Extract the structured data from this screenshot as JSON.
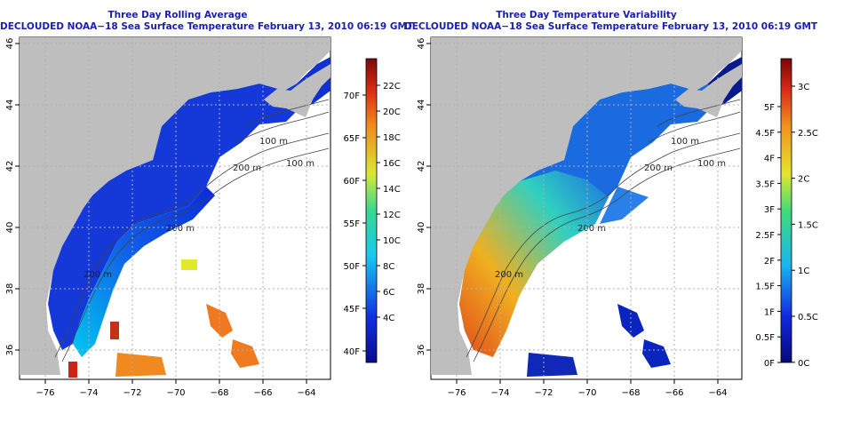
{
  "panels": [
    {
      "title_line1": "Three Day Rolling Average",
      "title_line2": "DECLOUDED NOAA−18 Sea Surface Temperature February 13, 2010 06:19 GMT",
      "colorbar": {
        "celsius_ticks": [
          "22C",
          "20C",
          "18C",
          "16C",
          "14C",
          "12C",
          "10C",
          "8C",
          "6C",
          "4C"
        ],
        "fahrenheit_ticks": [
          "70F",
          "65F",
          "60F",
          "55F",
          "50F",
          "45F",
          "40F"
        ]
      }
    },
    {
      "title_line1": "Three Day Temperature Variability",
      "title_line2": "DECLOUDED NOAA−18 Sea Surface Temperature February 13, 2010 06:19 GMT",
      "colorbar": {
        "celsius_ticks": [
          "3C",
          "2.5C",
          "2C",
          "1.5C",
          "1C",
          "0.5C",
          "0C"
        ],
        "fahrenheit_ticks": [
          "5F",
          "4.5F",
          "4F",
          "3.5F",
          "3F",
          "2.5F",
          "2F",
          "1.5F",
          "1F",
          "0.5F",
          "0F"
        ]
      }
    }
  ],
  "axes": {
    "x_ticks": [
      "−76",
      "−74",
      "−72",
      "−70",
      "−68",
      "−66",
      "−64"
    ],
    "y_ticks": [
      "36",
      "38",
      "40",
      "42",
      "44",
      "46"
    ]
  },
  "contour_labels": [
    "100 m",
    "200 m",
    "100 m",
    "200 m",
    "200 m"
  ],
  "colors": {
    "title": "#1a20b0",
    "land": "#bebebe",
    "grid": "#b0b0b0"
  }
}
